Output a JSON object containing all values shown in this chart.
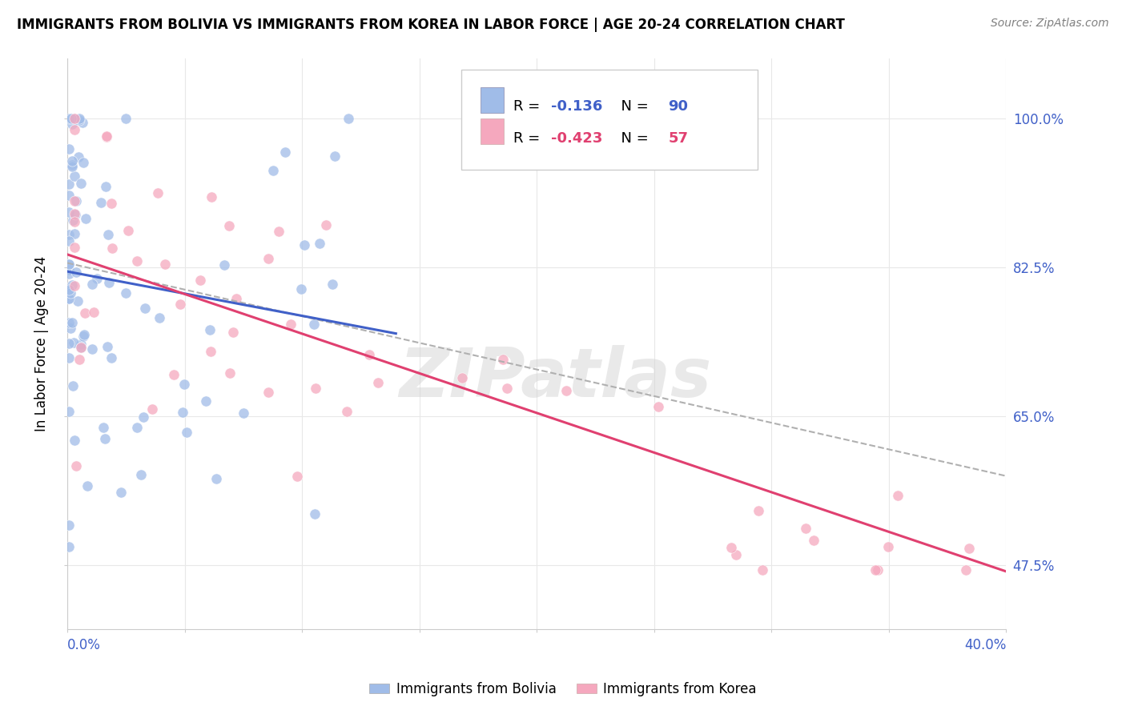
{
  "title": "IMMIGRANTS FROM BOLIVIA VS IMMIGRANTS FROM KOREA IN LABOR FORCE | AGE 20-24 CORRELATION CHART",
  "source": "Source: ZipAtlas.com",
  "ylabel_label": "In Labor Force | Age 20-24",
  "legend_r_bolivia": "R =  -0.136",
  "legend_n_bolivia": "N = 90",
  "legend_r_korea": "R =  -0.423",
  "legend_n_korea": "N = 57",
  "legend_label1": "Immigrants from Bolivia",
  "legend_label2": "Immigrants from Korea",
  "color_bolivia": "#a0bce8",
  "color_korea": "#f5a8be",
  "color_trendline_bolivia": "#4060c8",
  "color_trendline_korea": "#e04070",
  "color_dashed": "#b0b0b0",
  "watermark": "ZIPatlas",
  "ytick_labels": [
    "47.5%",
    "65.0%",
    "82.5%",
    "100.0%"
  ],
  "ytick_vals": [
    47.5,
    65.0,
    82.5,
    100.0
  ],
  "grid_color": "#e8e8e8",
  "background": "#ffffff",
  "bolivia_intercept": 82.0,
  "bolivia_slope": -0.52,
  "korea_intercept": 84.0,
  "korea_slope": -0.93
}
